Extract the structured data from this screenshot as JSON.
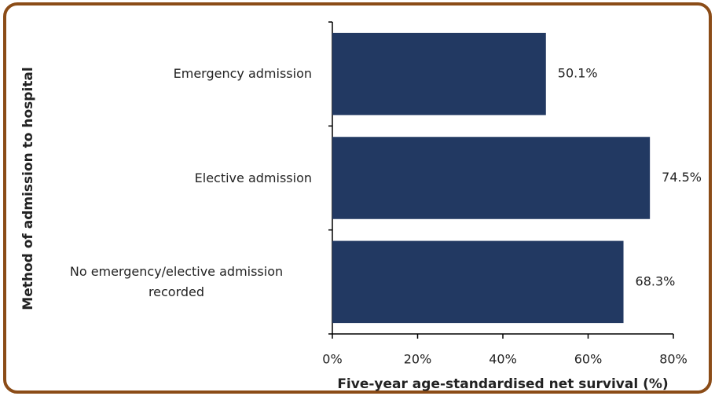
{
  "chart_data": {
    "type": "bar",
    "orientation": "horizontal",
    "x_label": "Five-year age-standardised net survival (%)",
    "y_label": "Method of admission to hospital",
    "categories": [
      "Emergency admission",
      "Elective admission",
      "No emergency/elective admission recorded"
    ],
    "values": [
      50.1,
      74.5,
      68.3
    ],
    "value_labels": [
      "50.1%",
      "74.5%",
      "68.3%"
    ],
    "color": "#223962",
    "xlim": [
      0,
      80
    ],
    "xticks": [
      {
        "value": 0,
        "label": "0%"
      },
      {
        "value": 20,
        "label": "20%"
      },
      {
        "value": 40,
        "label": "40%"
      },
      {
        "value": 60,
        "label": "60%"
      },
      {
        "value": 80,
        "label": "80%"
      }
    ]
  }
}
